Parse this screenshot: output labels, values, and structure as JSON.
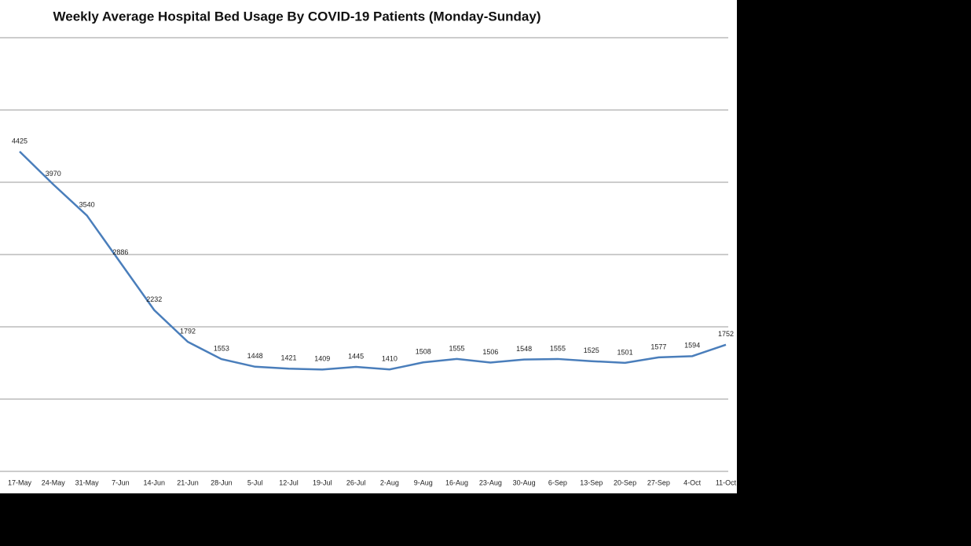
{
  "chart_data": {
    "type": "line",
    "title": "Weekly Average Hospital Bed Usage By COVID-19 Patients (Monday-Sunday)",
    "categories": [
      "17-May",
      "24-May",
      "31-May",
      "7-Jun",
      "14-Jun",
      "21-Jun",
      "28-Jun",
      "5-Jul",
      "12-Jul",
      "19-Jul",
      "26-Jul",
      "2-Aug",
      "9-Aug",
      "16-Aug",
      "23-Aug",
      "30-Aug",
      "6-Sep",
      "13-Sep",
      "20-Sep",
      "27-Sep",
      "4-Oct",
      "11-Oct"
    ],
    "values": [
      4425,
      3970,
      3540,
      2886,
      2232,
      1792,
      1553,
      1448,
      1421,
      1409,
      1445,
      1410,
      1508,
      1555,
      1506,
      1548,
      1555,
      1525,
      1501,
      1577,
      1594,
      1752
    ],
    "color": "#4a7ebb",
    "ylim": [
      0,
      6000
    ],
    "yticks": [
      0,
      1000,
      2000,
      3000,
      4000,
      5000,
      6000
    ],
    "grid": true
  }
}
